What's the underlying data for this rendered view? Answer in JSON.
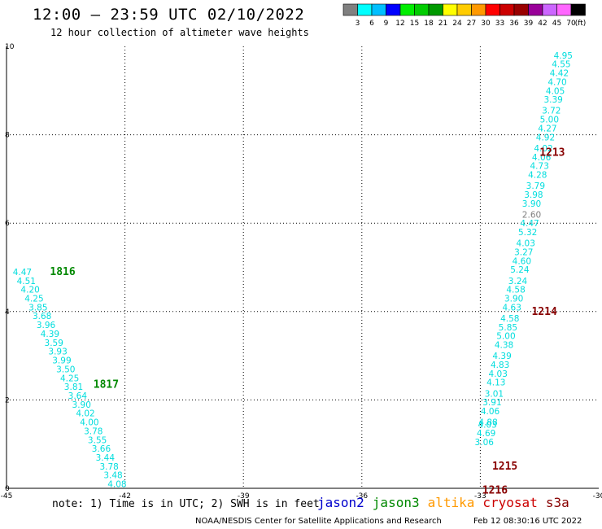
{
  "header": {
    "title": "12:00 – 23:59 UTC 02/10/2022",
    "subtitle": "12 hour collection of altimeter wave heights"
  },
  "scale": {
    "unit": "(ft)",
    "colors": [
      "#808080",
      "#00ffff",
      "#00bfff",
      "#0000ff",
      "#00ee00",
      "#00cc00",
      "#009900",
      "#ffff00",
      "#ffcc00",
      "#ff9900",
      "#ff0000",
      "#cc0000",
      "#990000",
      "#990099",
      "#cc66ff",
      "#ff66ff",
      "#000000"
    ],
    "labels": [
      "3",
      "6",
      "9",
      "12",
      "15",
      "18",
      "21",
      "24",
      "27",
      "30",
      "33",
      "36",
      "39",
      "42",
      "45",
      "70"
    ]
  },
  "chart_data": {
    "type": "scatter",
    "xlim": [
      -45,
      -30
    ],
    "ylim": [
      0,
      10
    ],
    "xticks": [
      -45,
      -42,
      -39,
      -36,
      -33,
      -30
    ],
    "xtick_labels": [
      "-45",
      "-42",
      "-39",
      "-36",
      "-33",
      "-30"
    ],
    "yticks": [
      0,
      2,
      4,
      6,
      8,
      10
    ],
    "ytick_labels": [
      "0",
      "2",
      "4",
      "6",
      "8",
      "10"
    ],
    "grid": true,
    "passes": [
      {
        "label": "1816",
        "x": -43.9,
        "y": 4.9,
        "color": "#008800"
      },
      {
        "label": "1817",
        "x": -42.8,
        "y": 2.35,
        "color": "#008800"
      },
      {
        "label": "1213",
        "x": -31.5,
        "y": 7.6,
        "color": "#880000"
      },
      {
        "label": "1214",
        "x": -31.7,
        "y": 4.0,
        "color": "#880000"
      },
      {
        "label": "1215",
        "x": -32.7,
        "y": 0.5,
        "color": "#880000"
      },
      {
        "label": "1216",
        "x": -32.95,
        "y": -0.05,
        "color": "#880000"
      }
    ],
    "points": [
      {
        "x": -30.9,
        "y": 9.8,
        "v": "4.95",
        "color": "#00dddd"
      },
      {
        "x": -30.95,
        "y": 9.6,
        "v": "4.55",
        "color": "#00dddd"
      },
      {
        "x": -31.0,
        "y": 9.4,
        "v": "4.42",
        "color": "#00dddd"
      },
      {
        "x": -31.05,
        "y": 9.2,
        "v": "4.70",
        "color": "#00dddd"
      },
      {
        "x": -31.1,
        "y": 9.0,
        "v": "4.05",
        "color": "#00dddd"
      },
      {
        "x": -31.15,
        "y": 8.8,
        "v": "3.39",
        "color": "#00dddd"
      },
      {
        "x": -31.2,
        "y": 8.55,
        "v": "3.72",
        "color": "#00dddd"
      },
      {
        "x": -31.25,
        "y": 8.35,
        "v": "5.00",
        "color": "#00dddd"
      },
      {
        "x": -31.3,
        "y": 8.15,
        "v": "4.27",
        "color": "#00dddd"
      },
      {
        "x": -31.35,
        "y": 7.95,
        "v": "4.92",
        "color": "#00dddd"
      },
      {
        "x": -31.4,
        "y": 7.7,
        "v": "4.02",
        "color": "#00dddd"
      },
      {
        "x": -31.45,
        "y": 7.5,
        "v": "4.06",
        "color": "#00dddd"
      },
      {
        "x": -31.5,
        "y": 7.3,
        "v": "4.73",
        "color": "#00dddd"
      },
      {
        "x": -31.55,
        "y": 7.1,
        "v": "4.28",
        "color": "#00dddd"
      },
      {
        "x": -31.6,
        "y": 6.85,
        "v": "3.79",
        "color": "#00dddd"
      },
      {
        "x": -31.65,
        "y": 6.65,
        "v": "3.98",
        "color": "#00dddd"
      },
      {
        "x": -31.7,
        "y": 6.45,
        "v": "3.90",
        "color": "#00dddd"
      },
      {
        "x": -31.7,
        "y": 6.2,
        "v": "2.60",
        "color": "#808080"
      },
      {
        "x": -31.75,
        "y": 6.0,
        "v": "4.47",
        "color": "#00dddd"
      },
      {
        "x": -31.8,
        "y": 5.8,
        "v": "5.32",
        "color": "#00dddd"
      },
      {
        "x": -31.85,
        "y": 5.55,
        "v": "4.03",
        "color": "#00dddd"
      },
      {
        "x": -31.9,
        "y": 5.35,
        "v": "3.27",
        "color": "#00dddd"
      },
      {
        "x": -31.95,
        "y": 5.15,
        "v": "4.60",
        "color": "#00dddd"
      },
      {
        "x": -32.0,
        "y": 4.95,
        "v": "5.24",
        "color": "#00dddd"
      },
      {
        "x": -32.05,
        "y": 4.7,
        "v": "3.24",
        "color": "#00dddd"
      },
      {
        "x": -32.1,
        "y": 4.5,
        "v": "4.58",
        "color": "#00dddd"
      },
      {
        "x": -32.15,
        "y": 4.3,
        "v": "3.90",
        "color": "#00dddd"
      },
      {
        "x": -32.2,
        "y": 4.1,
        "v": "4.63",
        "color": "#00dddd"
      },
      {
        "x": -32.25,
        "y": 3.85,
        "v": "4.58",
        "color": "#00dddd"
      },
      {
        "x": -32.3,
        "y": 3.65,
        "v": "5.85",
        "color": "#00dddd"
      },
      {
        "x": -32.35,
        "y": 3.45,
        "v": "5.00",
        "color": "#00dddd"
      },
      {
        "x": -32.4,
        "y": 3.25,
        "v": "4.38",
        "color": "#00dddd"
      },
      {
        "x": -32.45,
        "y": 3.0,
        "v": "4.39",
        "color": "#00dddd"
      },
      {
        "x": -32.5,
        "y": 2.8,
        "v": "4.83",
        "color": "#00dddd"
      },
      {
        "x": -32.55,
        "y": 2.6,
        "v": "4.03",
        "color": "#00dddd"
      },
      {
        "x": -32.6,
        "y": 2.4,
        "v": "4.13",
        "color": "#00dddd"
      },
      {
        "x": -32.65,
        "y": 2.15,
        "v": "3.01",
        "color": "#00dddd"
      },
      {
        "x": -32.7,
        "y": 1.95,
        "v": "3.91",
        "color": "#00dddd"
      },
      {
        "x": -32.75,
        "y": 1.75,
        "v": "4.06",
        "color": "#00dddd"
      },
      {
        "x": -32.8,
        "y": 1.5,
        "v": "4.88",
        "color": "#00dddd"
      },
      {
        "x": -32.82,
        "y": 1.45,
        "v": "4.03",
        "color": "#00dddd"
      },
      {
        "x": -32.85,
        "y": 1.25,
        "v": "4.69",
        "color": "#00dddd"
      },
      {
        "x": -32.9,
        "y": 1.05,
        "v": "3.06",
        "color": "#00dddd"
      },
      {
        "x": -44.6,
        "y": 4.9,
        "v": "4.47",
        "color": "#00dddd"
      },
      {
        "x": -44.5,
        "y": 4.7,
        "v": "4.51",
        "color": "#00dddd"
      },
      {
        "x": -44.4,
        "y": 4.5,
        "v": "4.20",
        "color": "#00dddd"
      },
      {
        "x": -44.3,
        "y": 4.3,
        "v": "4.25",
        "color": "#00dddd"
      },
      {
        "x": -44.2,
        "y": 4.1,
        "v": "3.85",
        "color": "#00dddd"
      },
      {
        "x": -44.1,
        "y": 3.9,
        "v": "3.68",
        "color": "#00dddd"
      },
      {
        "x": -44.0,
        "y": 3.7,
        "v": "3.96",
        "color": "#00dddd"
      },
      {
        "x": -43.9,
        "y": 3.5,
        "v": "4.39",
        "color": "#00dddd"
      },
      {
        "x": -43.8,
        "y": 3.3,
        "v": "3.59",
        "color": "#00dddd"
      },
      {
        "x": -43.7,
        "y": 3.1,
        "v": "3.93",
        "color": "#00dddd"
      },
      {
        "x": -43.6,
        "y": 2.9,
        "v": "3.99",
        "color": "#00dddd"
      },
      {
        "x": -43.5,
        "y": 2.7,
        "v": "3.50",
        "color": "#00dddd"
      },
      {
        "x": -43.4,
        "y": 2.5,
        "v": "4.25",
        "color": "#00dddd"
      },
      {
        "x": -43.3,
        "y": 2.3,
        "v": "3.81",
        "color": "#00dddd"
      },
      {
        "x": -43.2,
        "y": 2.1,
        "v": "3.64",
        "color": "#00dddd"
      },
      {
        "x": -43.1,
        "y": 1.9,
        "v": "3.90",
        "color": "#00dddd"
      },
      {
        "x": -43.0,
        "y": 1.7,
        "v": "4.02",
        "color": "#00dddd"
      },
      {
        "x": -42.9,
        "y": 1.5,
        "v": "4.00",
        "color": "#00dddd"
      },
      {
        "x": -42.8,
        "y": 1.3,
        "v": "3.78",
        "color": "#00dddd"
      },
      {
        "x": -42.7,
        "y": 1.1,
        "v": "3.55",
        "color": "#00dddd"
      },
      {
        "x": -42.6,
        "y": 0.9,
        "v": "3.66",
        "color": "#00dddd"
      },
      {
        "x": -42.5,
        "y": 0.7,
        "v": "3.44",
        "color": "#00dddd"
      },
      {
        "x": -42.4,
        "y": 0.5,
        "v": "3.78",
        "color": "#00dddd"
      },
      {
        "x": -42.3,
        "y": 0.3,
        "v": "3.48",
        "color": "#00dddd"
      },
      {
        "x": -42.2,
        "y": 0.1,
        "v": "4.08",
        "color": "#00dddd"
      }
    ]
  },
  "note": "note: 1) Time is in UTC; 2) SWH is in feet",
  "satellites": [
    {
      "name": "jason2",
      "color": "#0000cc"
    },
    {
      "name": "jason3",
      "color": "#008800"
    },
    {
      "name": "altika",
      "color": "#ff9900"
    },
    {
      "name": "cryosat",
      "color": "#cc0000"
    },
    {
      "name": "s3a",
      "color": "#880000"
    }
  ],
  "footer": {
    "left": "NOAA/NESDIS Center for Satellite Applications and Research",
    "right": "Feb 12 08:30:16 UTC 2022"
  }
}
